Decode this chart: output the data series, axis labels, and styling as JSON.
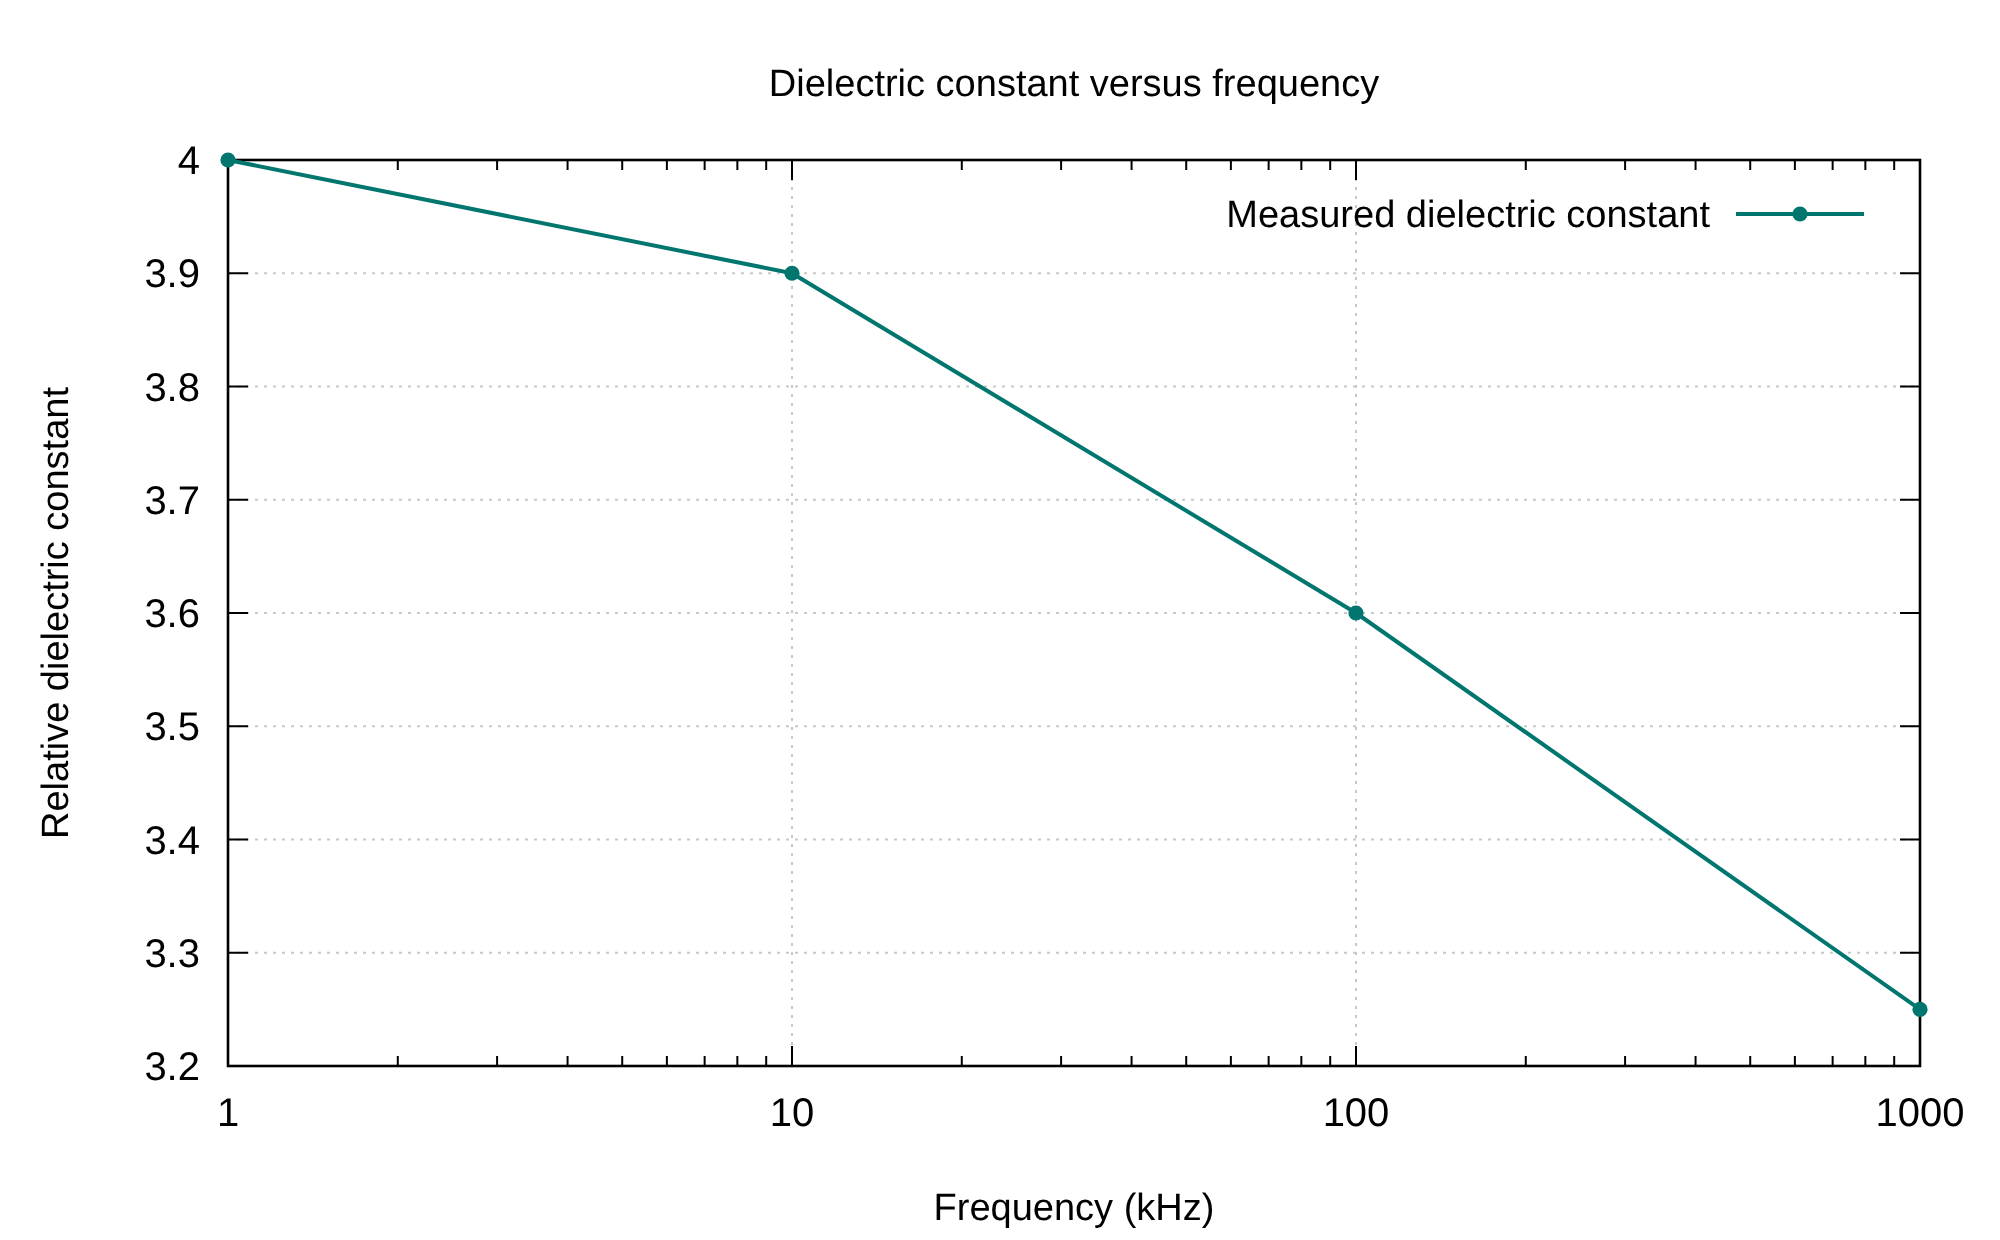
{
  "chart_data": {
    "type": "line",
    "title": "Dielectric constant versus frequency",
    "xlabel": "Frequency (kHz)",
    "ylabel": "Relative dielectric constant",
    "x": [
      1,
      10,
      100,
      1000
    ],
    "series": [
      {
        "name": "Measured dielectric constant",
        "color": "#00766f",
        "values": [
          4.0,
          3.9,
          3.6,
          3.25
        ]
      }
    ],
    "log": "x",
    "xlim": [
      1,
      1000
    ],
    "ylim": [
      3.2,
      4
    ],
    "xticks": [
      1,
      {
        "value": 2,
        "label": null
      },
      {
        "value": 3,
        "label": null
      },
      {
        "value": 4,
        "label": null
      },
      {
        "value": 5,
        "label": null
      },
      {
        "value": 6,
        "label": null
      },
      {
        "value": 7,
        "label": null
      },
      {
        "value": 8,
        "label": null
      },
      {
        "value": 9,
        "label": null
      },
      10,
      {
        "value": 20,
        "label": null
      },
      {
        "value": 30,
        "label": null
      },
      {
        "value": 40,
        "label": null
      },
      {
        "value": 50,
        "label": null
      },
      {
        "value": 60,
        "label": null
      },
      {
        "value": 70,
        "label": null
      },
      {
        "value": 80,
        "label": null
      },
      {
        "value": 90,
        "label": null
      },
      100,
      {
        "value": 200,
        "label": null
      },
      {
        "value": 300,
        "label": null
      },
      {
        "value": 400,
        "label": null
      },
      {
        "value": 500,
        "label": null
      },
      {
        "value": 600,
        "label": null
      },
      {
        "value": 700,
        "label": null
      },
      {
        "value": 800,
        "label": null
      },
      {
        "value": 900,
        "label": null
      },
      1000
    ],
    "yticks": [
      3.2,
      3.3,
      3.4,
      3.5,
      3.6,
      3.7,
      3.8,
      3.9,
      4
    ],
    "grid": true,
    "legend": "top right",
    "marker": "circle",
    "line_style": "solid"
  }
}
